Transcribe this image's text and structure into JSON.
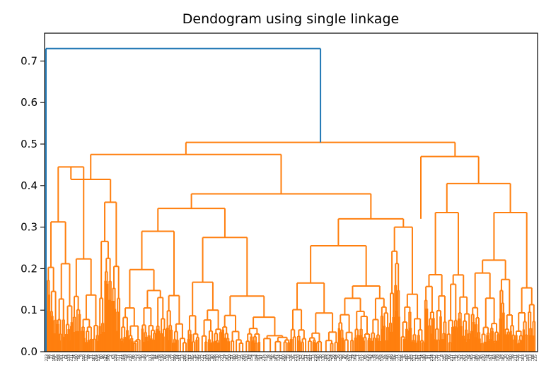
{
  "chart_data": {
    "type": "dendrogram",
    "title": "Dendogram using single linkage",
    "xlabel": "",
    "ylabel": "",
    "ylim": [
      0,
      0.767
    ],
    "yticks": [
      "0.0",
      "0.1",
      "0.2",
      "0.3",
      "0.4",
      "0.5",
      "0.6",
      "0.7"
    ],
    "grid": false,
    "colors": {
      "above_threshold": "#1f77b4",
      "cluster": "#ff7f0e",
      "axis": "#000000"
    },
    "root_merge_height": 0.73,
    "top_merges": [
      {
        "height": 0.73,
        "color": "#1f77b4"
      },
      {
        "height": 0.504,
        "color": "#ff7f0e"
      },
      {
        "height": 0.475,
        "color": "#ff7f0e"
      },
      {
        "height": 0.47,
        "color": "#ff7f0e"
      },
      {
        "height": 0.445,
        "color": "#ff7f0e"
      },
      {
        "height": 0.415,
        "color": "#ff7f0e"
      },
      {
        "height": 0.405,
        "color": "#ff7f0e"
      },
      {
        "height": 0.4,
        "color": "#ff7f0e"
      },
      {
        "height": 0.395,
        "color": "#ff7f0e"
      },
      {
        "height": 0.38,
        "color": "#ff7f0e"
      },
      {
        "height": 0.36,
        "color": "#ff7f0e"
      },
      {
        "height": 0.345,
        "color": "#ff7f0e"
      },
      {
        "height": 0.335,
        "color": "#ff7f0e"
      },
      {
        "height": 0.32,
        "color": "#ff7f0e"
      },
      {
        "height": 0.3,
        "color": "#ff7f0e"
      },
      {
        "height": 0.29,
        "color": "#ff7f0e"
      },
      {
        "height": 0.275,
        "color": "#ff7f0e"
      },
      {
        "height": 0.265,
        "color": "#ff7f0e"
      },
      {
        "height": 0.255,
        "color": "#ff7f0e"
      },
      {
        "height": 0.24,
        "color": "#ff7f0e"
      }
    ],
    "leaf_labels": [
      "223",
      "48",
      "27",
      "108",
      "135",
      "158",
      "201",
      "12",
      "64",
      "133",
      "211",
      "74",
      "190",
      "56",
      "9",
      "150",
      "172",
      "99",
      "31",
      "167",
      "204",
      "115",
      "80",
      "46",
      "142",
      "188",
      "2",
      "63",
      "129",
      "177",
      "21",
      "104",
      "159",
      "38",
      "210",
      "86",
      "125",
      "13",
      "192",
      "70",
      "149",
      "5",
      "111",
      "183",
      "44",
      "96",
      "218",
      "139",
      "60",
      "174",
      "28",
      "117",
      "199",
      "84",
      "151",
      "33",
      "206",
      "122",
      "67",
      "185",
      "15",
      "145",
      "92",
      "212",
      "51",
      "169",
      "103",
      "40",
      "196",
      "130",
      "76",
      "221",
      "19",
      "161",
      "110",
      "57",
      "180",
      "88",
      "137",
      "25",
      "208",
      "120",
      "69",
      "154",
      "3",
      "194",
      "101",
      "47",
      "215",
      "132",
      "78",
      "166",
      "36",
      "187",
      "114",
      "61",
      "200",
      "146",
      "23",
      "176",
      "95",
      "213",
      "128",
      "52",
      "162",
      "11",
      "191",
      "107",
      "73",
      "219",
      "140",
      "30",
      "170",
      "89",
      "203",
      "124",
      "58",
      "184",
      "16",
      "153",
      "98",
      "42",
      "209",
      "131",
      "79",
      "164",
      "7",
      "197",
      "112",
      "65",
      "216",
      "143",
      "34",
      "178",
      "93",
      "205",
      "118",
      "55",
      "168",
      "20",
      "189",
      "106",
      "71",
      "222",
      "136",
      "26",
      "160",
      "85",
      "202",
      "121",
      "62",
      "181",
      "14",
      "148",
      "97",
      "41",
      "214",
      "127",
      "75",
      "171",
      "8",
      "195",
      "109",
      "66",
      "217",
      "141",
      "32",
      "175",
      "91",
      "207",
      "116",
      "54",
      "165",
      "17",
      "186",
      "102",
      "45",
      "220",
      "134",
      "24",
      "157",
      "83",
      "198",
      "119",
      "59",
      "182",
      "10",
      "152",
      "100",
      "39",
      "211",
      "126",
      "77",
      "163",
      "6",
      "193",
      "113",
      "68",
      "215"
    ]
  }
}
